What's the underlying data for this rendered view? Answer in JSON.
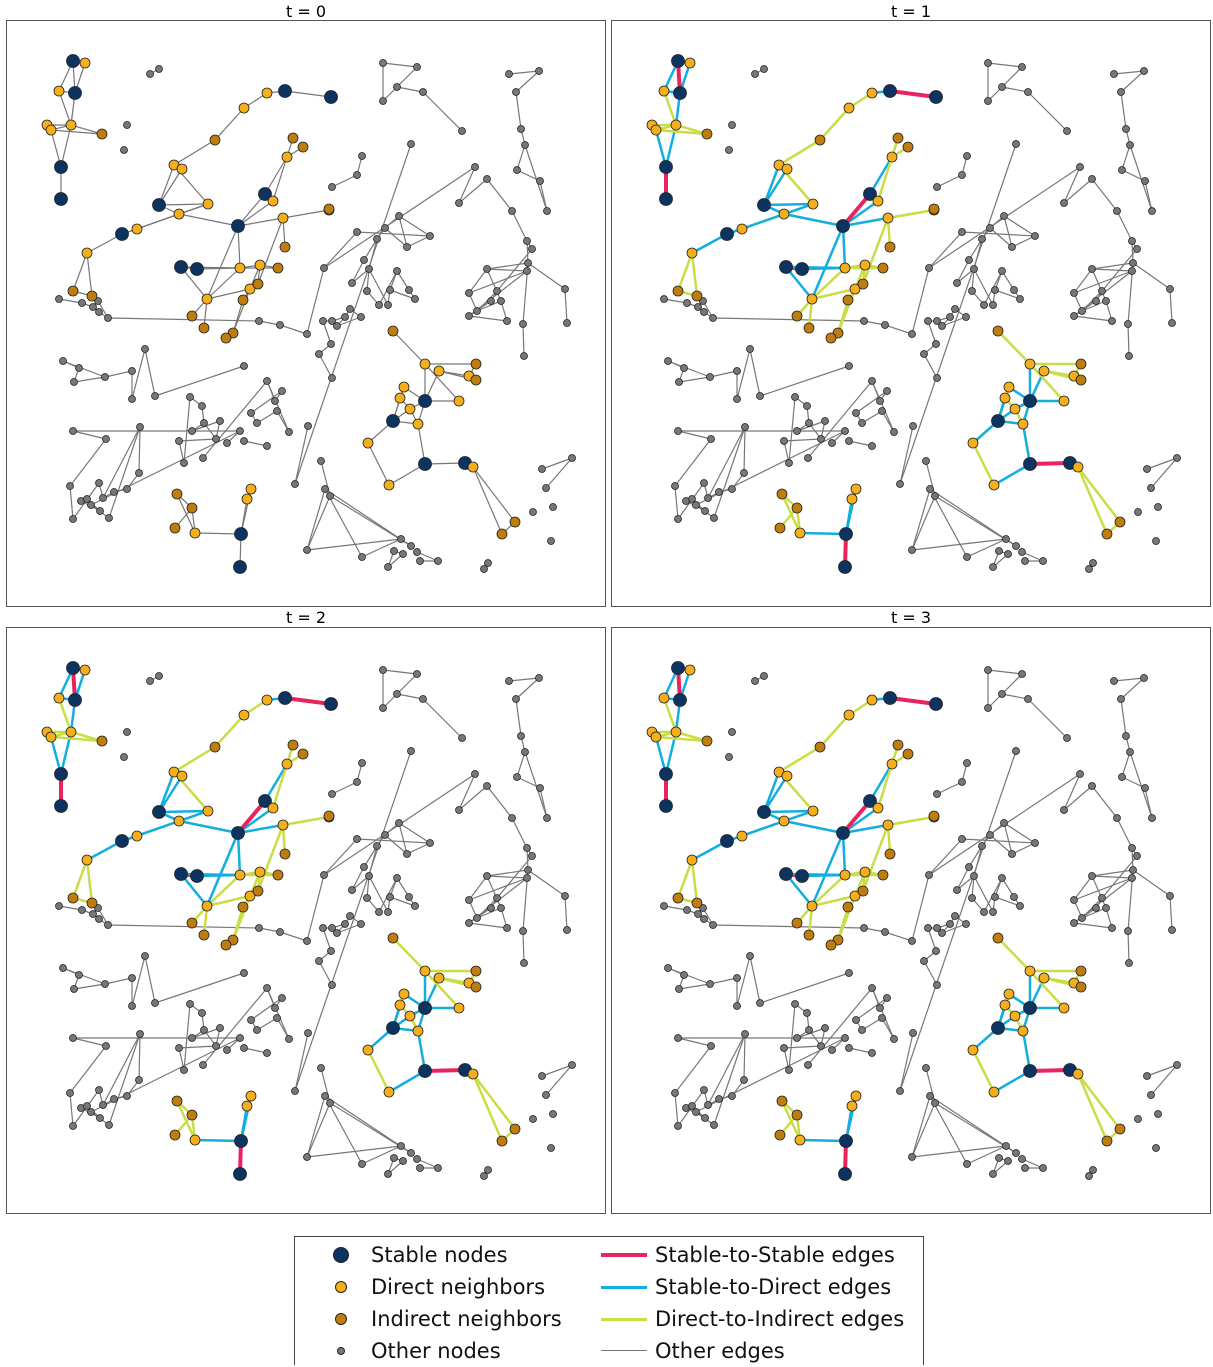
{
  "panels": [
    {
      "title": "t = 0"
    },
    {
      "title": "t = 1"
    },
    {
      "title": "t = 2"
    },
    {
      "title": "t = 3"
    }
  ],
  "legend": {
    "nodes": [
      {
        "label": "Stable nodes",
        "color": "#0d3461"
      },
      {
        "label": "Direct neighbors",
        "color": "#f5ae1c"
      },
      {
        "label": "Indirect neighbors",
        "color": "#c07d0f"
      },
      {
        "label": "Other nodes",
        "color": "#777777"
      }
    ],
    "edges": [
      {
        "label": "Stable-to-Stable edges",
        "color": "#e8245f"
      },
      {
        "label": "Stable-to-Direct edges",
        "color": "#12aee0"
      },
      {
        "label": "Direct-to-Indirect edges",
        "color": "#cadd45"
      },
      {
        "label": "Other edges",
        "color": "#777777"
      }
    ]
  }
}
